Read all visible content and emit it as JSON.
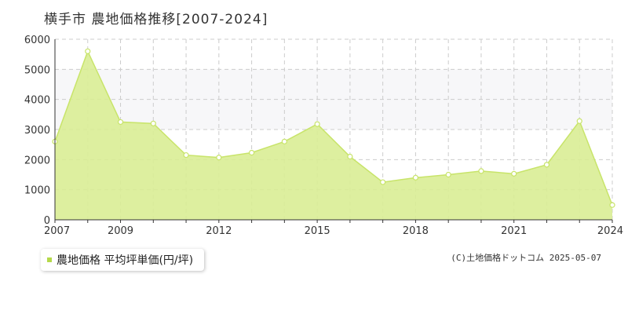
{
  "header": {
    "title": "横手市 農地価格推移[2007-2024]"
  },
  "legend": {
    "label": "農地価格 平均坪単価(円/坪)",
    "color": "#b5d94a"
  },
  "footer": {
    "copyright": "(C)土地価格ドットコム 2025-05-07"
  },
  "colors": {
    "area_fill": "#d9ed95",
    "line": "#c8e46a",
    "band": "#f7f7f9",
    "grid": "#cccccc",
    "axis": "#333333"
  },
  "chart_data": {
    "type": "area",
    "title": "横手市 農地価格推移[2007-2024]",
    "xlabel": "",
    "ylabel": "",
    "x": [
      2007,
      2008,
      2009,
      2010,
      2011,
      2012,
      2013,
      2014,
      2015,
      2016,
      2017,
      2018,
      2019,
      2020,
      2021,
      2022,
      2023,
      2024
    ],
    "x_tick_labels": [
      "2007",
      "2009",
      "2012",
      "2015",
      "2018",
      "2021",
      "2024"
    ],
    "y_ticks": [
      0,
      1000,
      2000,
      3000,
      4000,
      5000,
      6000
    ],
    "ylim": [
      0,
      6000
    ],
    "grid": true,
    "legend_position": "bottom-left",
    "series": [
      {
        "name": "農地価格 平均坪単価(円/坪)",
        "values": [
          2600,
          5600,
          3250,
          3200,
          2150,
          2070,
          2230,
          2600,
          3180,
          2100,
          1250,
          1400,
          1500,
          1620,
          1530,
          1830,
          3280,
          490
        ]
      }
    ]
  }
}
